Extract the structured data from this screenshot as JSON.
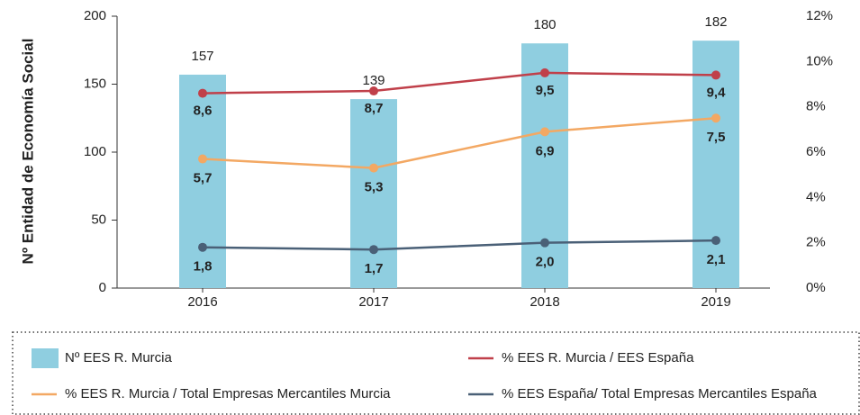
{
  "chart_data": {
    "type": "bar",
    "y_label": "Nº Entidad de Economía Social",
    "categories": [
      "2016",
      "2017",
      "2018",
      "2019"
    ],
    "ylim": [
      0,
      200
    ],
    "yticks": [
      0,
      50,
      100,
      150,
      200
    ],
    "y2lim": [
      0,
      12
    ],
    "y2ticks": [
      {
        "value": 0,
        "label": "0%"
      },
      {
        "value": 2,
        "label": "2%"
      },
      {
        "value": 4,
        "label": "4%"
      },
      {
        "value": 6,
        "label": "6%"
      },
      {
        "value": 8,
        "label": "8%"
      },
      {
        "value": 10,
        "label": "10%"
      },
      {
        "value": 12,
        "label": "12%"
      }
    ],
    "series": [
      {
        "name": "Nº EES R. Murcia",
        "type": "bar",
        "color": "#8fcee0",
        "values": [
          157,
          139,
          180,
          182
        ]
      },
      {
        "name": "% EES R. Murcia / EES España",
        "type": "line",
        "axis": "y2",
        "color": "#c0404a",
        "values": [
          8.6,
          8.7,
          9.5,
          9.4
        ],
        "value_labels": [
          "8,6",
          "8,7",
          "9,5",
          "9,4"
        ]
      },
      {
        "name": "% EES R. Murcia / Total Empresas Mercantiles Murcia",
        "type": "line",
        "axis": "y2",
        "color": "#f3a863",
        "values": [
          5.7,
          5.3,
          6.9,
          7.5
        ],
        "value_labels": [
          "5,7",
          "5,3",
          "6,9",
          "7,5"
        ]
      },
      {
        "name": "% EES España/ Total Empresas Mercantiles España",
        "type": "line",
        "axis": "y2",
        "color": "#4a6077",
        "values": [
          1.8,
          1.7,
          2.0,
          2.1
        ],
        "value_labels": [
          "1,8",
          "1,7",
          "2,0",
          "2,1"
        ]
      }
    ]
  }
}
